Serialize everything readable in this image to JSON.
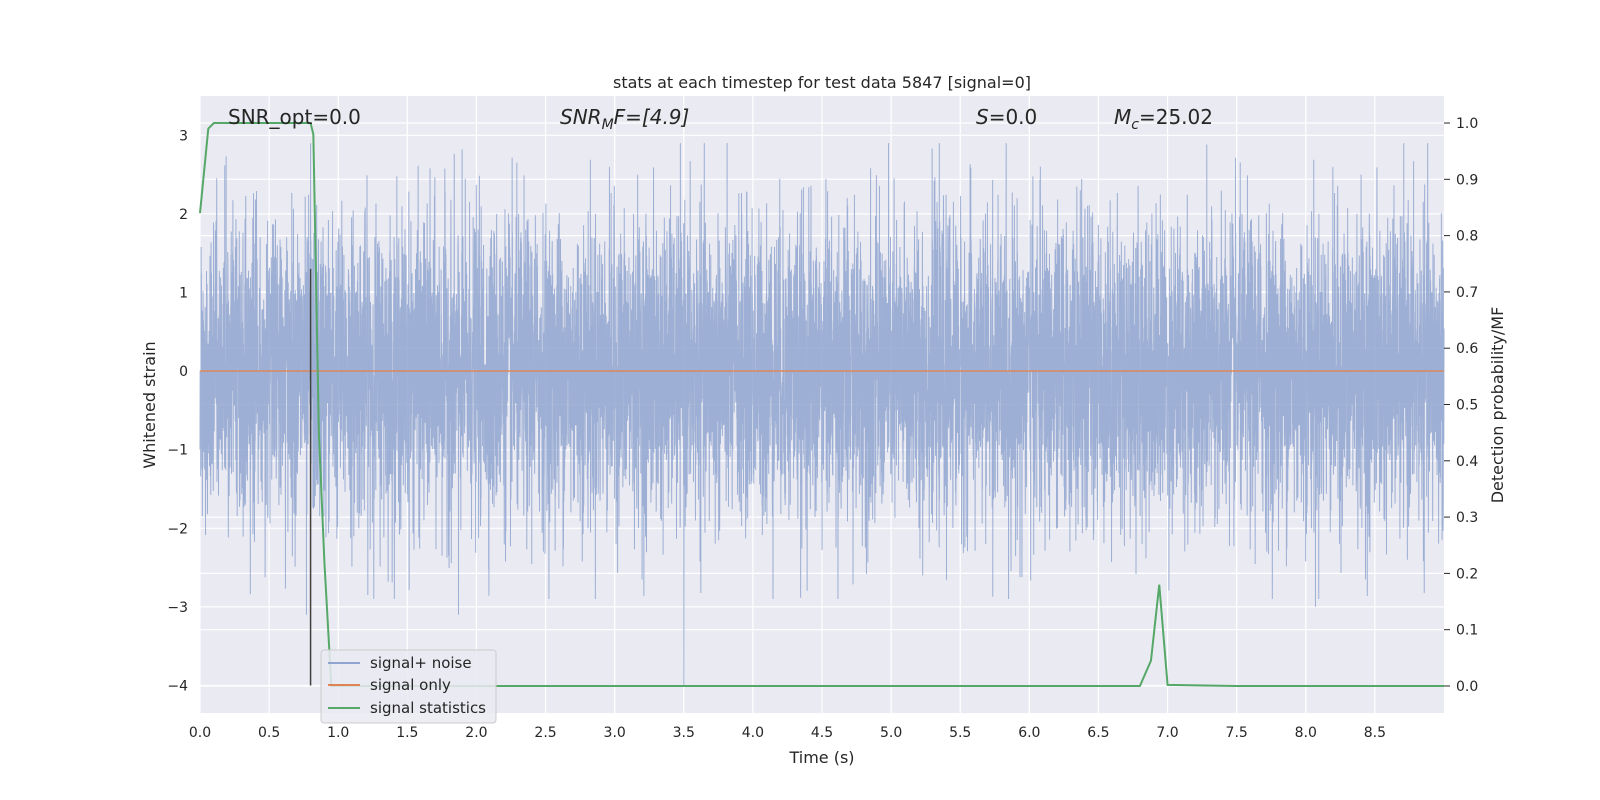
{
  "chart_data": {
    "type": "line",
    "title": "stats at each timestep for test data 5847 [signal=0]",
    "xlabel": "Time (s)",
    "ylabel": "Whitened strain",
    "ylabel_right": "Detection probability/MF",
    "xlim": [
      0.0,
      9.0
    ],
    "ylim": [
      -4.35,
      3.5
    ],
    "ylim_right": [
      -0.048,
      1.048
    ],
    "xticks": [
      "0.0",
      "0.5",
      "1.0",
      "1.5",
      "2.0",
      "2.5",
      "3.0",
      "3.5",
      "4.0",
      "4.5",
      "5.0",
      "5.5",
      "6.0",
      "6.5",
      "7.0",
      "7.5",
      "8.0",
      "8.5"
    ],
    "yticks": [
      "−4",
      "−3",
      "−2",
      "−1",
      "0",
      "1",
      "2",
      "3"
    ],
    "yticks_right": [
      "0.0",
      "0.1",
      "0.2",
      "0.3",
      "0.4",
      "0.5",
      "0.6",
      "0.7",
      "0.8",
      "0.9",
      "1.0"
    ],
    "grid": true,
    "legend_placement": "lower-left",
    "annotations": {
      "snr_opt": "SNR_opt=0.0",
      "snr_mf_main": "SNR",
      "snr_mf_sub": "M",
      "snr_mf_rest": "F=[4.9]",
      "s_sym": "S",
      "s_rest": "=0.0",
      "mc_sym": "M",
      "mc_sub": "c",
      "mc_rest": "=25.02"
    },
    "series": [
      {
        "name": "signal+ noise",
        "color": "#8fa5cf",
        "axis": "left",
        "description_values": "whitened noise, approx. N(0,1), range about −4.0 to 3.0",
        "extremes": [
          [
            0.8,
            2.9
          ],
          [
            0.77,
            -3.1
          ],
          [
            1.87,
            -3.1
          ],
          [
            3.5,
            -4.0
          ],
          [
            8.07,
            -3.0
          ],
          [
            5.85,
            -2.9
          ]
        ]
      },
      {
        "name": "signal only",
        "color": "#dd8452",
        "axis": "left",
        "x": [
          0.0,
          9.0
        ],
        "y": [
          0.0,
          0.0
        ]
      },
      {
        "name": "signal statistics",
        "color": "#55a868",
        "axis": "right",
        "x": [
          0.0,
          0.06,
          0.1,
          0.2,
          0.3,
          0.4,
          0.5,
          0.6,
          0.7,
          0.8,
          0.82,
          0.86,
          0.9,
          0.95,
          1.0,
          2.0,
          3.0,
          4.0,
          5.0,
          6.0,
          6.8,
          6.88,
          6.94,
          7.0,
          7.5,
          8.0,
          9.0
        ],
        "y": [
          0.84,
          0.99,
          1.0,
          1.0,
          1.0,
          1.0,
          1.0,
          1.0,
          1.0,
          1.0,
          0.98,
          0.45,
          0.22,
          0.0,
          0.0,
          0.0,
          0.0,
          0.0,
          0.0,
          0.0,
          0.0,
          0.045,
          0.18,
          0.002,
          0.0,
          0.0,
          0.0
        ]
      }
    ],
    "vertical_marker": {
      "x": 0.8,
      "y_range": [
        -4.0,
        1.3
      ],
      "color": "#404040"
    }
  }
}
